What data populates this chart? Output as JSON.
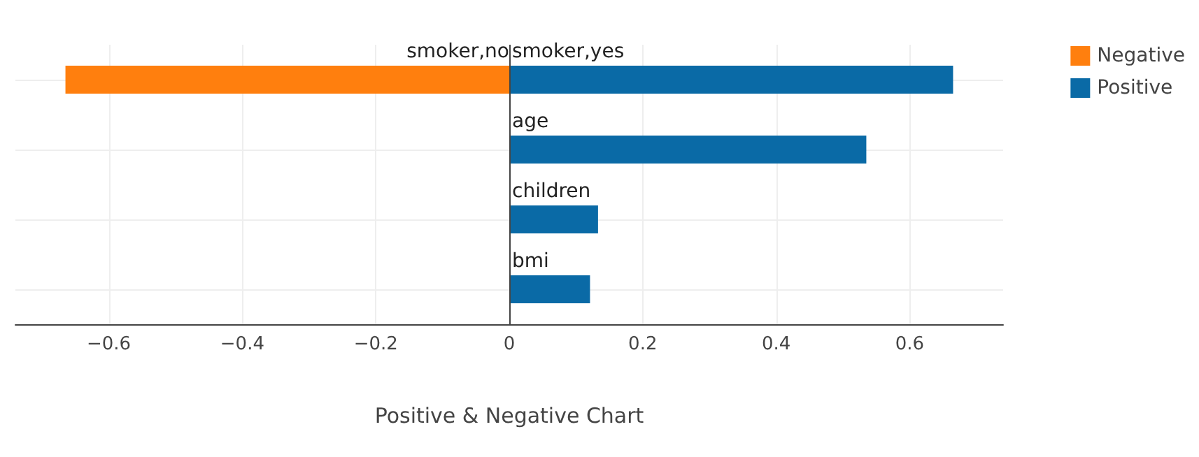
{
  "chart_data": {
    "type": "bar",
    "orientation": "horizontal",
    "xlabel": "Positive & Negative Chart",
    "categories": [
      null,
      null,
      null,
      null
    ],
    "series": [
      {
        "name": "Negative",
        "color": "#ff7f0e",
        "values": [
          -0.665,
          null,
          null,
          null
        ],
        "value_labels": [
          "smoker,no",
          null,
          null,
          null
        ]
      },
      {
        "name": "Positive",
        "color": "#0a6aa6",
        "values": [
          0.665,
          0.535,
          0.133,
          0.121
        ],
        "value_labels": [
          "smoker,yes",
          "age",
          "children",
          "bmi"
        ]
      }
    ],
    "xlim": [
      -0.74,
      0.74
    ],
    "xticks": [
      -0.6,
      -0.4,
      -0.2,
      0,
      0.2,
      0.4,
      0.6
    ],
    "grid": true,
    "legend": "top right"
  }
}
